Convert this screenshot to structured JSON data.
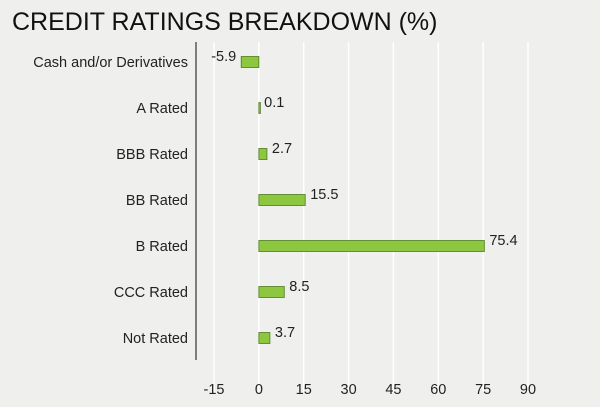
{
  "chart_data": {
    "type": "bar",
    "orientation": "horizontal",
    "title": "CREDIT RATINGS BREAKDOWN (%)",
    "categories": [
      "Cash and/or Derivatives",
      "A Rated",
      "BBB Rated",
      "BB Rated",
      "B Rated",
      "CCC Rated",
      "Not Rated"
    ],
    "values": [
      -5.9,
      0.1,
      2.7,
      15.5,
      75.4,
      8.5,
      3.7
    ],
    "value_labels": [
      "-5.9",
      "0.1",
      "2.7",
      "15.5",
      "75.4",
      "8.5",
      "3.7"
    ],
    "x_ticks": [
      -15,
      0,
      15,
      30,
      45,
      60,
      75,
      90
    ],
    "x_tick_labels": [
      "-15",
      "0",
      "15",
      "30",
      "45",
      "60",
      "75",
      "90"
    ],
    "xlim": [
      -15,
      90
    ],
    "grid": true,
    "colors": {
      "bar_fill": "#8dc63f",
      "bar_stroke": "#4e7a1e",
      "grid": "#ffffff",
      "axis": "#333333",
      "background": "#efefee"
    }
  }
}
